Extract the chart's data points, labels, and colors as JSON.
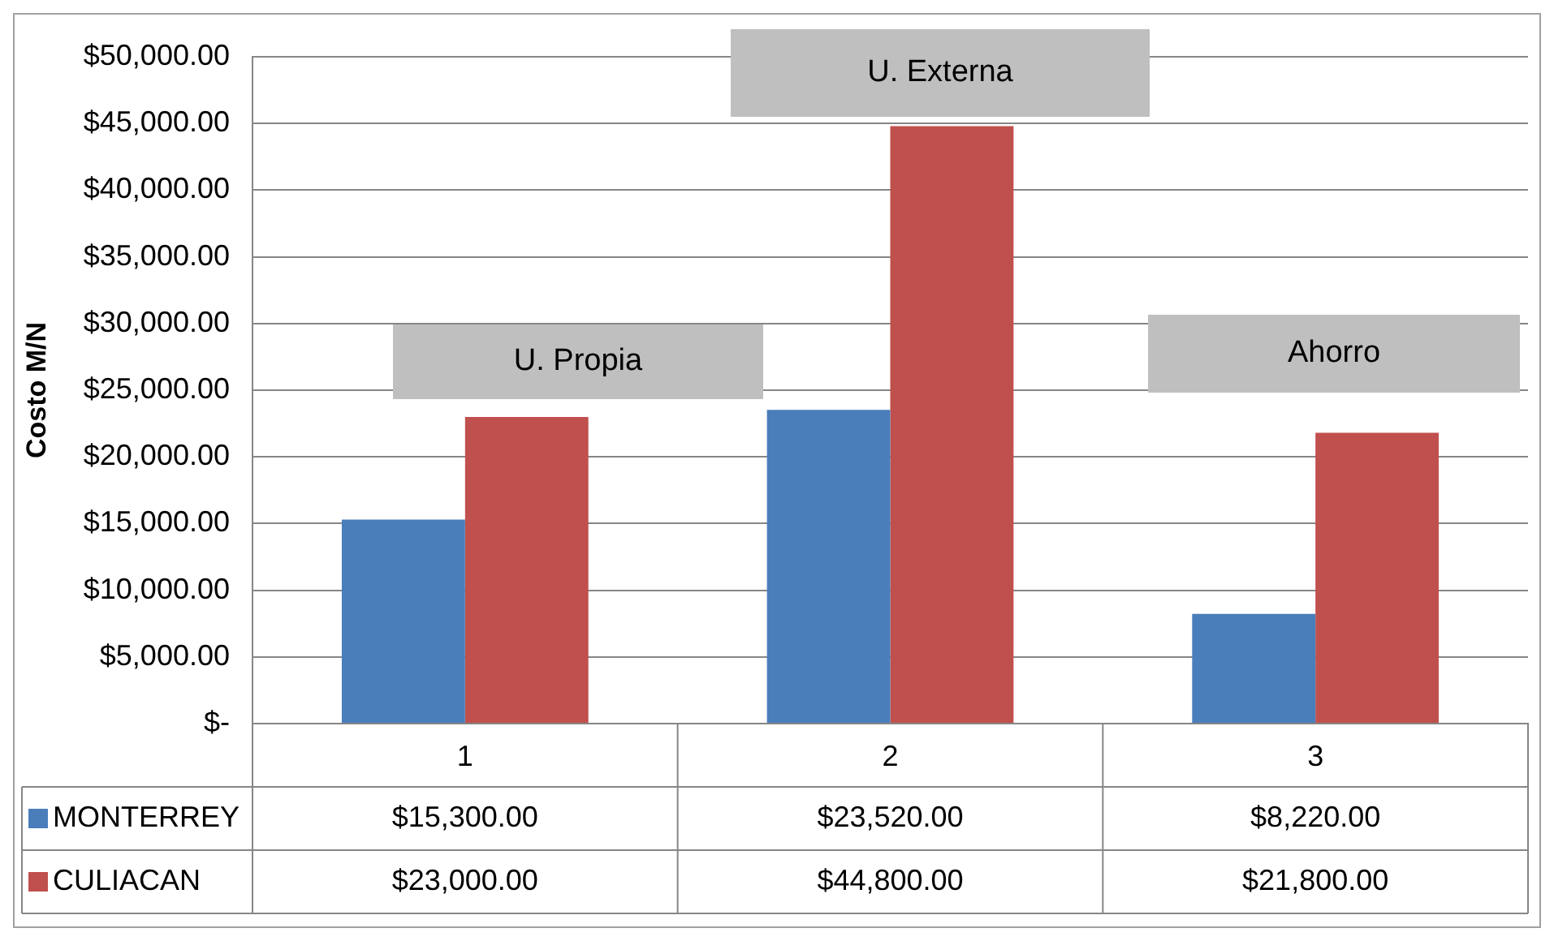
{
  "chart_data": {
    "type": "bar",
    "ylabel": "Costo M/N",
    "categories": [
      "1",
      "2",
      "3"
    ],
    "series": [
      {
        "name": "MONTERREY",
        "color": "#4a7ebb",
        "values": [
          15300,
          23520,
          8220
        ],
        "value_labels": [
          "$15,300.00",
          "$23,520.00",
          "$8,220.00"
        ]
      },
      {
        "name": "CULIACAN",
        "color": "#c0504d",
        "values": [
          23000,
          44800,
          21800
        ],
        "value_labels": [
          "$23,000.00",
          "$44,800.00",
          "$21,800.00"
        ]
      }
    ],
    "ylim": [
      0,
      50000
    ],
    "yticks": [
      {
        "value": 0,
        "label": "$-"
      },
      {
        "value": 5000,
        "label": "$5,000.00"
      },
      {
        "value": 10000,
        "label": "$10,000.00"
      },
      {
        "value": 15000,
        "label": "$15,000.00"
      },
      {
        "value": 20000,
        "label": "$20,000.00"
      },
      {
        "value": 25000,
        "label": "$25,000.00"
      },
      {
        "value": 30000,
        "label": "$30,000.00"
      },
      {
        "value": 35000,
        "label": "$35,000.00"
      },
      {
        "value": 40000,
        "label": "$40,000.00"
      },
      {
        "value": 45000,
        "label": "$45,000.00"
      },
      {
        "value": 50000,
        "label": "$50,000.00"
      }
    ],
    "grid": "y",
    "legend": "bottom",
    "annotations": [
      "U. Propia",
      "U. Externa",
      "Ahorro"
    ]
  }
}
